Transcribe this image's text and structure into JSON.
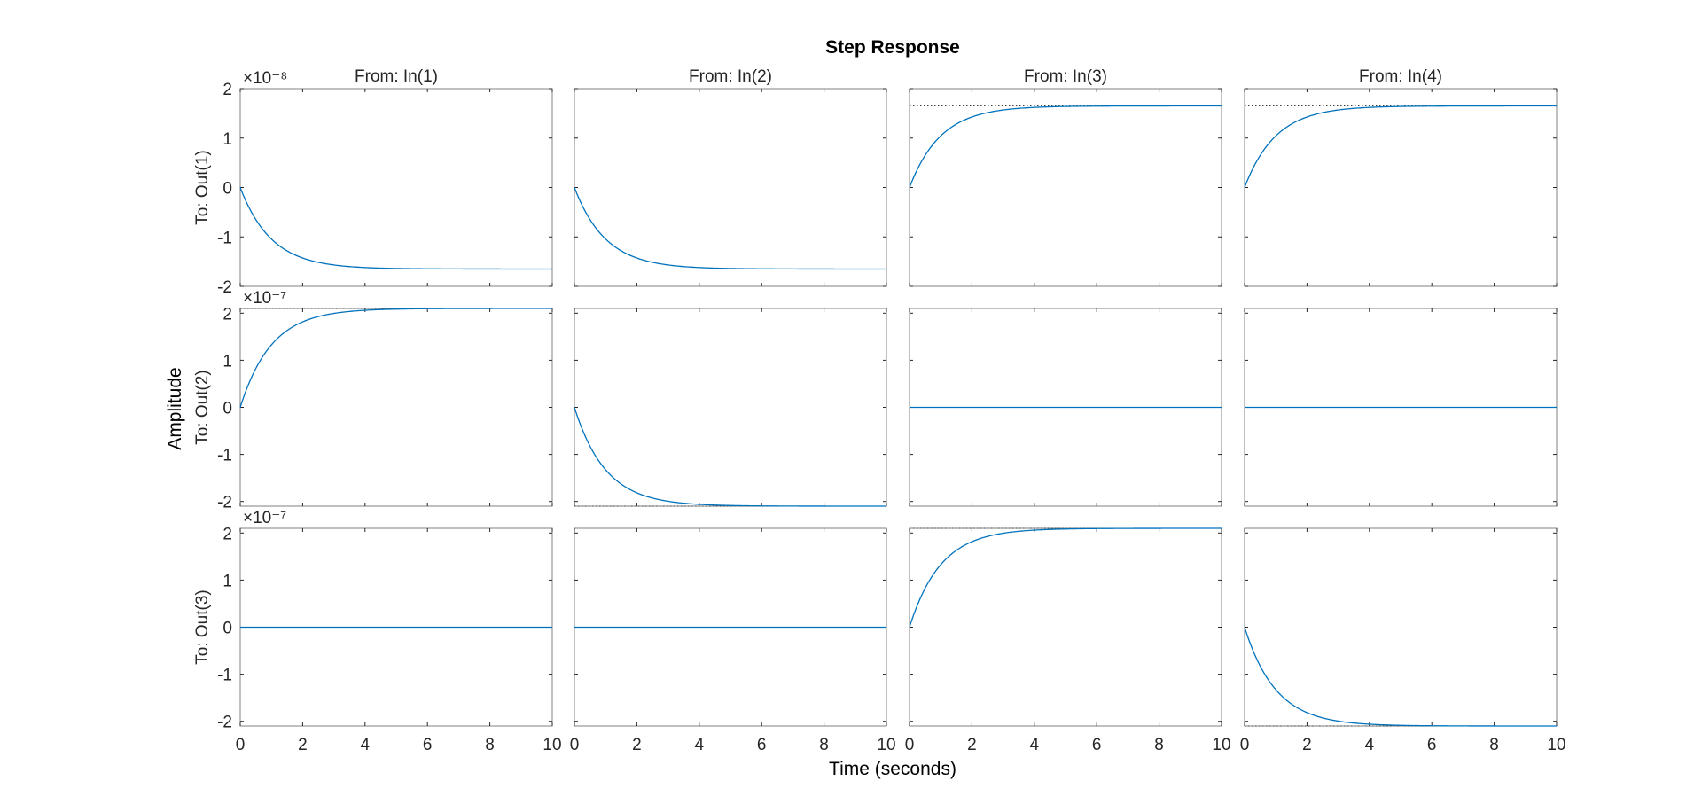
{
  "chart_data": {
    "type": "line",
    "title": "Step Response",
    "xlabel": "Time (seconds)",
    "ylabel": "Amplitude",
    "grid": false,
    "xlim": [
      0,
      10
    ],
    "x_ticks": [
      "0",
      "2",
      "4",
      "6",
      "8",
      "10"
    ],
    "columns": [
      "From: In(1)",
      "From: In(2)",
      "From: In(3)",
      "From: In(4)"
    ],
    "rows": [
      {
        "label": "To: Out(1)",
        "exponent": "×10⁻⁸",
        "scale": 1e-08,
        "ylim": [
          -2,
          2
        ],
        "y_ticks": [
          "2",
          "1",
          "0",
          "-1",
          "-2"
        ],
        "steady_state": [
          -1.65,
          -1.65,
          1.65,
          1.65
        ],
        "time_constant": 1.0
      },
      {
        "label": "To: Out(2)",
        "exponent": "×10⁻⁷",
        "scale": 1e-07,
        "ylim": [
          -2.1,
          2.1
        ],
        "y_ticks": [
          "2",
          "1",
          "0",
          "-1",
          "-2"
        ],
        "steady_state": [
          2.1,
          -2.1,
          0,
          0
        ],
        "time_constant": 1.0
      },
      {
        "label": "To: Out(3)",
        "exponent": "×10⁻⁷",
        "scale": 1e-07,
        "ylim": [
          -2.1,
          2.1
        ],
        "y_ticks": [
          "2",
          "1",
          "0",
          "-1",
          "-2"
        ],
        "steady_state": [
          0,
          0,
          2.1,
          -2.1
        ],
        "time_constant": 1.0
      }
    ],
    "colors": {
      "response": "#0072BD",
      "steady_state_line": "#404040",
      "axes": "#262626",
      "axes_box": "#808080"
    }
  }
}
